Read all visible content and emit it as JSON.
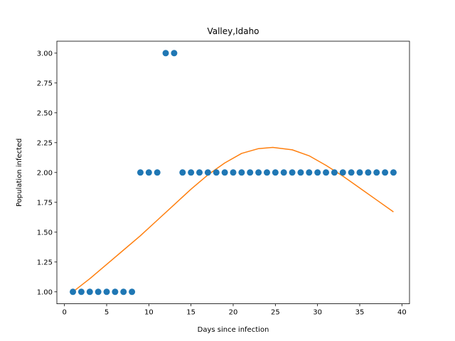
{
  "chart_data": {
    "type": "scatter",
    "title": "Valley,Idaho",
    "xlabel": "Days since infection",
    "ylabel": "Population infected",
    "xlim": [
      -0.9,
      40.9
    ],
    "ylim": [
      0.9,
      3.1
    ],
    "xticks": [
      0,
      5,
      10,
      15,
      20,
      25,
      30,
      35,
      40
    ],
    "xtick_labels": [
      "0",
      "5",
      "10",
      "15",
      "20",
      "25",
      "30",
      "35",
      "40"
    ],
    "yticks": [
      1.0,
      1.25,
      1.5,
      1.75,
      2.0,
      2.25,
      2.5,
      2.75,
      3.0
    ],
    "ytick_labels": [
      "1.00",
      "1.25",
      "1.50",
      "1.75",
      "2.00",
      "2.25",
      "2.50",
      "2.75",
      "3.00"
    ],
    "grid": false,
    "series": [
      {
        "kind": "scatter",
        "color": "#1f77b4",
        "x": [
          1,
          2,
          3,
          4,
          5,
          6,
          7,
          8,
          9,
          10,
          11,
          12,
          13,
          14,
          15,
          16,
          17,
          18,
          19,
          20,
          21,
          22,
          23,
          24,
          25,
          26,
          27,
          28,
          29,
          30,
          31,
          32,
          33,
          34,
          35,
          36,
          37,
          38,
          39
        ],
        "y": [
          1,
          1,
          1,
          1,
          1,
          1,
          1,
          1,
          2,
          2,
          2,
          3,
          3,
          2,
          2,
          2,
          2,
          2,
          2,
          2,
          2,
          2,
          2,
          2,
          2,
          2,
          2,
          2,
          2,
          2,
          2,
          2,
          2,
          2,
          2,
          2,
          2,
          2,
          2
        ]
      },
      {
        "kind": "line",
        "color": "#ff7f0e",
        "x": [
          1,
          3,
          5,
          7,
          9,
          11,
          13,
          15,
          17,
          19,
          21,
          23,
          24.7,
          27,
          29,
          31,
          33,
          35,
          37,
          39
        ],
        "y": [
          1.0,
          1.11,
          1.23,
          1.35,
          1.47,
          1.6,
          1.73,
          1.86,
          1.98,
          2.08,
          2.16,
          2.2,
          2.21,
          2.19,
          2.14,
          2.06,
          1.97,
          1.87,
          1.77,
          1.67
        ]
      }
    ]
  }
}
